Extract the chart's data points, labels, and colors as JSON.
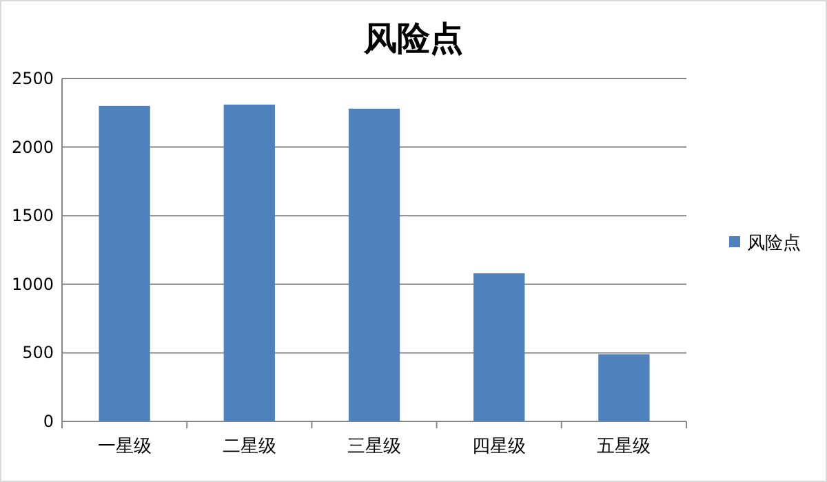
{
  "chart_data": {
    "type": "bar",
    "title": "风险点",
    "categories": [
      "一星级",
      "二星级",
      "三星级",
      "四星级",
      "五星级"
    ],
    "series": [
      {
        "name": "风险点",
        "color": "#4f81bd",
        "values": [
          2300,
          2310,
          2280,
          1080,
          490
        ]
      }
    ],
    "ylim": [
      0,
      2500
    ],
    "yticks": [
      0,
      500,
      1000,
      1500,
      2000,
      2500
    ],
    "grid": "y",
    "legend": "right"
  }
}
